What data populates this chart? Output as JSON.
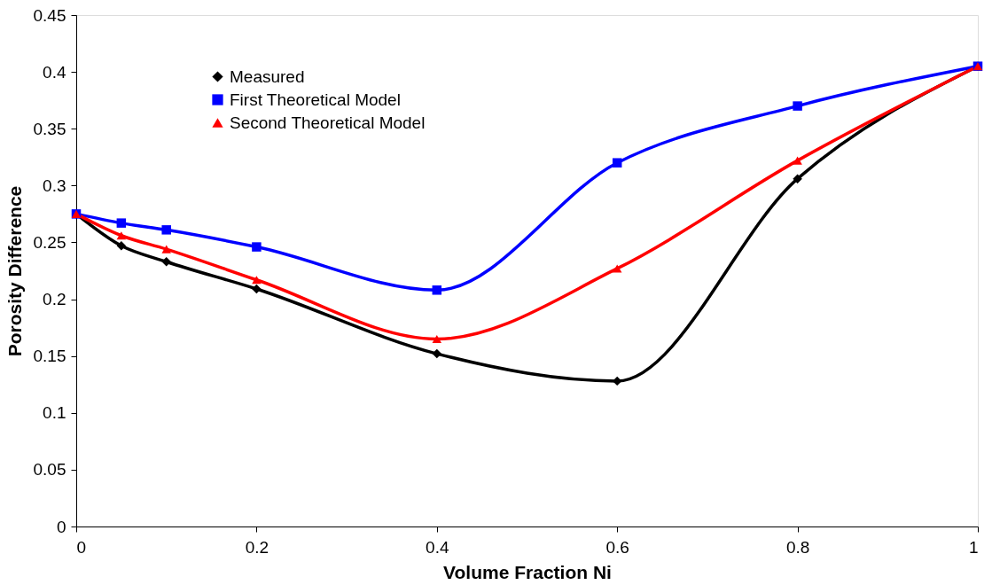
{
  "chart_data": {
    "type": "line",
    "xlabel": "Volume Fraction Ni",
    "ylabel": "Porosity Difference",
    "x": [
      0,
      0.05,
      0.1,
      0.2,
      0.4,
      0.6,
      0.8,
      1
    ],
    "series": [
      {
        "name": "Measured",
        "color": "#000000",
        "marker": "diamond",
        "values": [
          0.275,
          0.247,
          0.233,
          0.209,
          0.152,
          0.128,
          0.306,
          0.405
        ]
      },
      {
        "name": "First Theoretical Model",
        "color": "#0000ff",
        "marker": "square",
        "values": [
          0.275,
          0.267,
          0.261,
          0.246,
          0.208,
          0.32,
          0.37,
          0.405
        ]
      },
      {
        "name": "Second Theoretical Model",
        "color": "#ff0000",
        "marker": "triangle",
        "values": [
          0.275,
          0.256,
          0.244,
          0.217,
          0.165,
          0.227,
          0.322,
          0.405
        ]
      }
    ],
    "xlim": [
      0,
      1
    ],
    "xticks": [
      0,
      0.2,
      0.4,
      0.6,
      0.8,
      1
    ],
    "ylim": [
      0,
      0.45
    ],
    "yticks": [
      0,
      0.05,
      0.1,
      0.15,
      0.2,
      0.25,
      0.3,
      0.35,
      0.4,
      0.45
    ],
    "grid": false,
    "legend": "top left",
    "line_style": "solid"
  }
}
